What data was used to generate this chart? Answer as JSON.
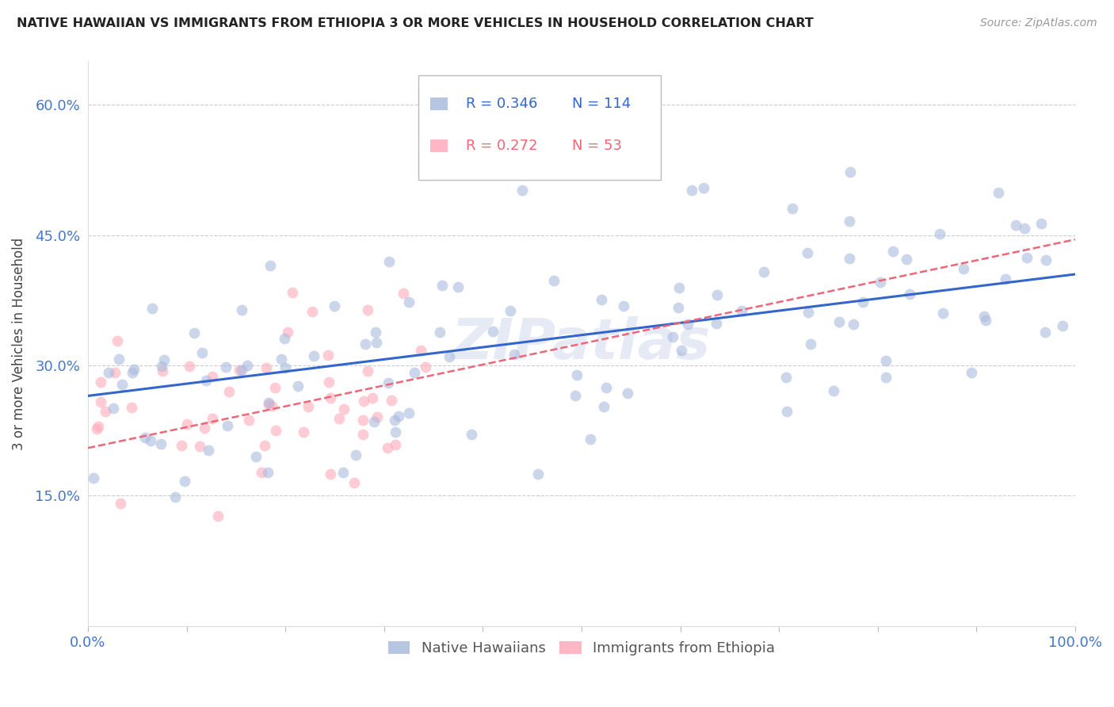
{
  "title": "NATIVE HAWAIIAN VS IMMIGRANTS FROM ETHIOPIA 3 OR MORE VEHICLES IN HOUSEHOLD CORRELATION CHART",
  "source": "Source: ZipAtlas.com",
  "ylabel": "3 or more Vehicles in Household",
  "x_min": 0.0,
  "x_max": 1.0,
  "y_min": 0.0,
  "y_max": 0.65,
  "y_ticks": [
    0.15,
    0.3,
    0.45,
    0.6
  ],
  "y_tick_labels": [
    "15.0%",
    "30.0%",
    "45.0%",
    "60.0%"
  ],
  "x_tick_positions": [
    0.0,
    0.1,
    0.2,
    0.3,
    0.4,
    0.5,
    0.6,
    0.7,
    0.8,
    0.9,
    1.0
  ],
  "x_tick_labels_major": [
    "0.0%",
    "",
    "",
    "",
    "",
    "",
    "",
    "",
    "",
    "",
    "100.0%"
  ],
  "grid_color": "#cccccc",
  "background_color": "#ffffff",
  "blue_scatter_color": "#aabbdd",
  "pink_scatter_color": "#ffaabb",
  "line_blue_color": "#3366cc",
  "line_pink_color": "#ee6677",
  "tick_label_color": "#4477cc",
  "legend_r_blue": "0.346",
  "legend_n_blue": "114",
  "legend_r_pink": "0.272",
  "legend_n_pink": "53",
  "watermark": "ZIPatlas",
  "series1_label": "Native Hawaiians",
  "series2_label": "Immigrants from Ethiopia",
  "blue_line_start_y": 0.265,
  "blue_line_end_y": 0.405,
  "pink_line_start_y": 0.205,
  "pink_line_end_y": 0.445,
  "seed": 42
}
